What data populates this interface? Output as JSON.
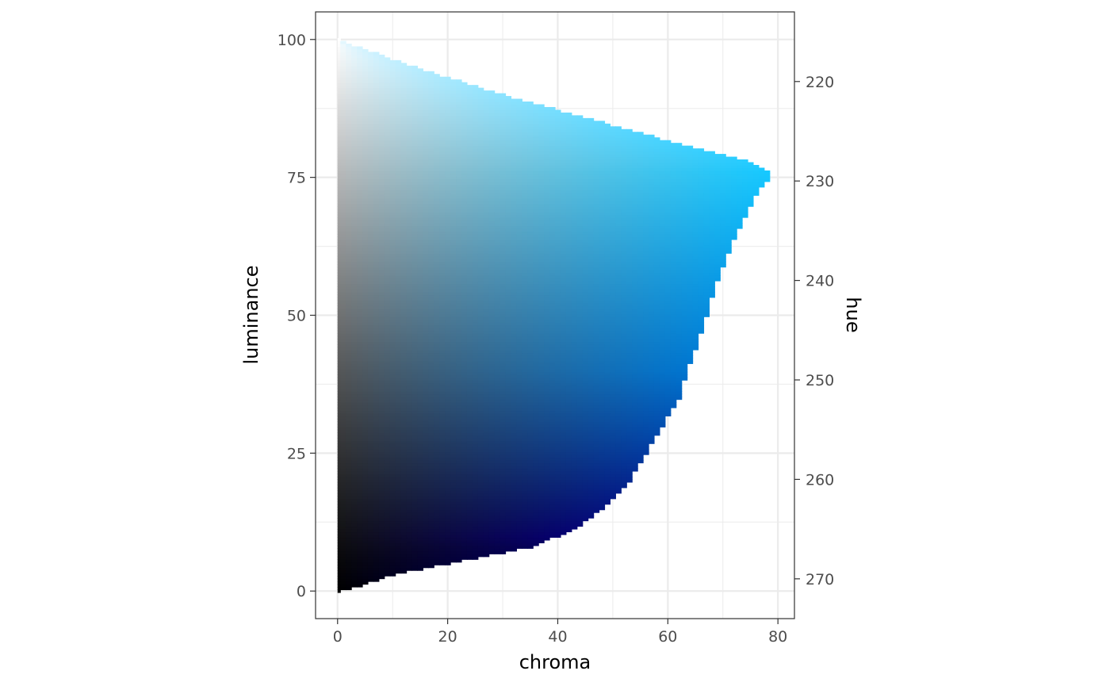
{
  "chart_data": {
    "type": "heatmap",
    "title": "",
    "xlabel": "chroma",
    "ylabel": "luminance",
    "y2label": "hue",
    "xlim": [
      -4,
      83
    ],
    "ylim": [
      -5,
      105
    ],
    "y2lim": [
      274,
      213
    ],
    "x_ticks": [
      0,
      20,
      40,
      60,
      80
    ],
    "y_ticks": [
      0,
      25,
      50,
      75,
      100
    ],
    "y2_ticks": [
      220,
      230,
      240,
      250,
      260,
      270
    ],
    "hue_range": [
      270,
      215
    ],
    "grid": true,
    "legend": "none",
    "max_chroma_boundary": {
      "luminance": [
        0,
        1,
        3,
        5,
        7,
        8,
        10,
        12,
        15,
        20,
        25,
        30,
        35,
        40,
        45,
        50,
        55,
        60,
        65,
        70,
        74,
        75,
        76,
        77,
        78,
        80,
        85,
        90,
        95,
        100
      ],
      "chroma": [
        0,
        4,
        10,
        20,
        30,
        35,
        40,
        44,
        48,
        53,
        56,
        59,
        62,
        63.5,
        65.5,
        67,
        68.5,
        70.5,
        72.5,
        75,
        77.5,
        78.5,
        78,
        76.5,
        74,
        66,
        48,
        30,
        14,
        0
      ]
    },
    "colors": {
      "black": "#000000",
      "white": "#ffffff",
      "navy": "#06006e",
      "bright_blue": "#0075d0",
      "sky": "#16c8ff",
      "pale_sky": "#e0f6ff"
    }
  },
  "axis": {
    "x_title": "chroma",
    "y_title": "luminance",
    "y2_title": "hue"
  }
}
